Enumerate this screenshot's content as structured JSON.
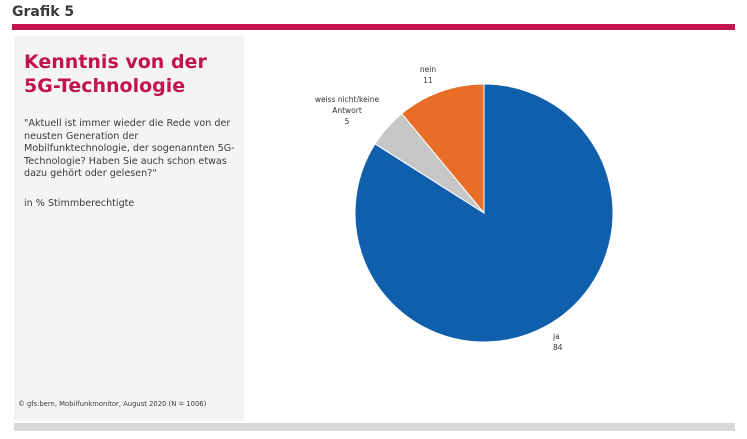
{
  "header": {
    "title": "Grafik 5"
  },
  "sidebar": {
    "title": "Kenntnis von der 5G-Technologie",
    "question": "\"Aktuell ist immer wieder die Rede von der neusten Generation der Mobilfunktechnologie, der sogenannten 5G-Technologie? Haben Sie auch schon etwas dazu gehört oder gelesen?\"",
    "unit": "in % Stimmberechtigte",
    "source": "© gfs.bern, Mobilfunkmonitor, August 2020 (N = 1006)"
  },
  "colors": {
    "accent": "#c3134f",
    "ja": "#0f5fad",
    "nein": "#e86d27",
    "weiss": "#c6c6c6"
  },
  "chart_data": {
    "type": "pie",
    "title": "",
    "slices": [
      {
        "label": "ja",
        "value": 84,
        "color": "#0f5fad"
      },
      {
        "label": "weiss nicht/keine Antwort",
        "value": 5,
        "color": "#c6c6c6"
      },
      {
        "label": "nein",
        "value": 11,
        "color": "#e86d27"
      }
    ]
  }
}
